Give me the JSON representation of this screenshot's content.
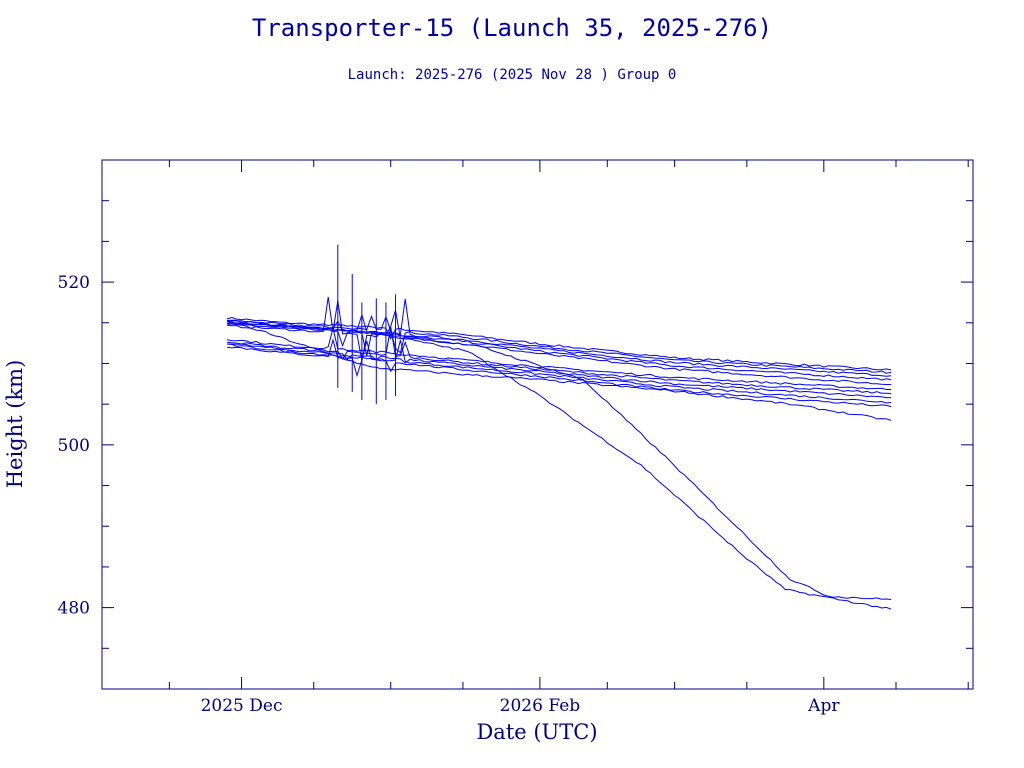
{
  "chart_data": {
    "type": "line",
    "title": "Transporter-15 (Launch 35, 2025-276)",
    "subtitle": "Launch: 2025-276  (2025 Nov 28 )  Group 0",
    "xlabel": "Date (UTC)",
    "ylabel": "Height (km)",
    "xlim": [
      "2025-11-02",
      "2026-05-02"
    ],
    "ylim": [
      470,
      535
    ],
    "x_ticks": [
      {
        "date": "2025-12-01",
        "label": "2025 Dec"
      },
      {
        "date": "2026-02-01",
        "label": "2026 Feb"
      },
      {
        "date": "2026-04-01",
        "label": "Apr"
      }
    ],
    "y_ticks": [
      480,
      500,
      520
    ],
    "grid": false,
    "colors": {
      "line": "#0000ff",
      "axis": "#000080",
      "text": "#0000aa"
    },
    "series": [
      {
        "x": [
          "2025-11-28",
          "2025-12-10",
          "2025-12-30",
          "2026-01-15",
          "2026-02-01",
          "2026-03-01",
          "2026-04-15"
        ],
        "y": [
          515.6,
          515.0,
          514.4,
          513.6,
          512.4,
          510.7,
          509.2
        ]
      },
      {
        "x": [
          "2025-11-28",
          "2025-12-10",
          "2025-12-30",
          "2026-01-15",
          "2026-02-01",
          "2026-03-01",
          "2026-04-15"
        ],
        "y": [
          515.3,
          514.8,
          514.1,
          513.3,
          512.1,
          510.4,
          508.9
        ]
      },
      {
        "x": [
          "2025-11-28",
          "2025-12-10",
          "2025-12-30",
          "2026-01-15",
          "2026-02-01",
          "2026-03-01",
          "2026-04-15"
        ],
        "y": [
          515.0,
          514.6,
          513.8,
          513.0,
          511.8,
          510.1,
          508.5
        ]
      },
      {
        "x": [
          "2025-11-28",
          "2025-12-10",
          "2025-12-30",
          "2026-01-15",
          "2026-02-01",
          "2026-03-01",
          "2026-04-15"
        ],
        "y": [
          514.8,
          514.4,
          513.6,
          512.8,
          511.5,
          509.7,
          508.0
        ]
      },
      {
        "x": [
          "2025-11-28",
          "2025-12-10",
          "2025-12-30",
          "2026-01-15",
          "2026-02-01",
          "2026-03-01",
          "2026-04-15"
        ],
        "y": [
          514.6,
          514.2,
          513.4,
          512.5,
          511.2,
          509.3,
          507.4
        ]
      },
      {
        "x": [
          "2025-11-28",
          "2025-12-10",
          "2025-12-30",
          "2026-01-15",
          "2026-02-01",
          "2026-03-01",
          "2026-04-15"
        ],
        "y": [
          513.0,
          512.2,
          511.4,
          510.5,
          509.6,
          508.3,
          506.8
        ]
      },
      {
        "x": [
          "2025-11-28",
          "2025-12-10",
          "2025-12-30",
          "2026-01-15",
          "2026-02-01",
          "2026-03-01",
          "2026-04-15"
        ],
        "y": [
          512.7,
          511.9,
          511.1,
          510.2,
          509.3,
          507.9,
          506.3
        ]
      },
      {
        "x": [
          "2025-11-28",
          "2025-12-10",
          "2025-12-30",
          "2026-01-15",
          "2026-02-01",
          "2026-03-01",
          "2026-04-15"
        ],
        "y": [
          512.5,
          511.7,
          510.8,
          509.9,
          509.0,
          507.5,
          505.8
        ]
      },
      {
        "x": [
          "2025-11-28",
          "2025-12-10",
          "2025-12-30",
          "2026-01-15",
          "2026-02-01",
          "2026-03-01",
          "2026-04-15"
        ],
        "y": [
          512.3,
          511.5,
          510.5,
          509.6,
          508.7,
          507.1,
          505.2
        ]
      },
      {
        "x": [
          "2025-11-28",
          "2025-12-10",
          "2025-12-30",
          "2026-01-15",
          "2026-02-01",
          "2026-03-01",
          "2026-04-15"
        ],
        "y": [
          512.1,
          511.3,
          510.3,
          509.3,
          508.4,
          506.7,
          504.7
        ]
      },
      {
        "x": [
          "2025-11-28",
          "2025-12-05",
          "2025-12-15",
          "2025-12-28",
          "2026-01-15",
          "2026-02-01",
          "2026-03-01",
          "2026-03-25",
          "2026-04-15"
        ],
        "y": [
          515.2,
          514.0,
          512.0,
          509.5,
          508.7,
          508.0,
          506.6,
          505.0,
          503.0
        ]
      },
      {
        "x": [
          "2025-11-28",
          "2025-12-30",
          "2026-01-17",
          "2026-02-01",
          "2026-02-22",
          "2026-03-15",
          "2026-03-24",
          "2026-04-15"
        ],
        "y": [
          515.3,
          513.6,
          511.5,
          506.0,
          497.5,
          486.5,
          482.2,
          479.8
        ]
      },
      {
        "x": [
          "2025-11-28",
          "2025-12-30",
          "2026-01-20",
          "2026-02-10",
          "2026-02-28",
          "2026-03-25",
          "2026-04-02",
          "2026-04-15"
        ],
        "y": [
          515.0,
          513.8,
          512.0,
          508.0,
          498.0,
          483.5,
          481.4,
          481.0
        ]
      }
    ],
    "noise_window": {
      "x": [
        "2025-12-18",
        "2026-01-04"
      ],
      "y": [
        505,
        525
      ]
    }
  }
}
